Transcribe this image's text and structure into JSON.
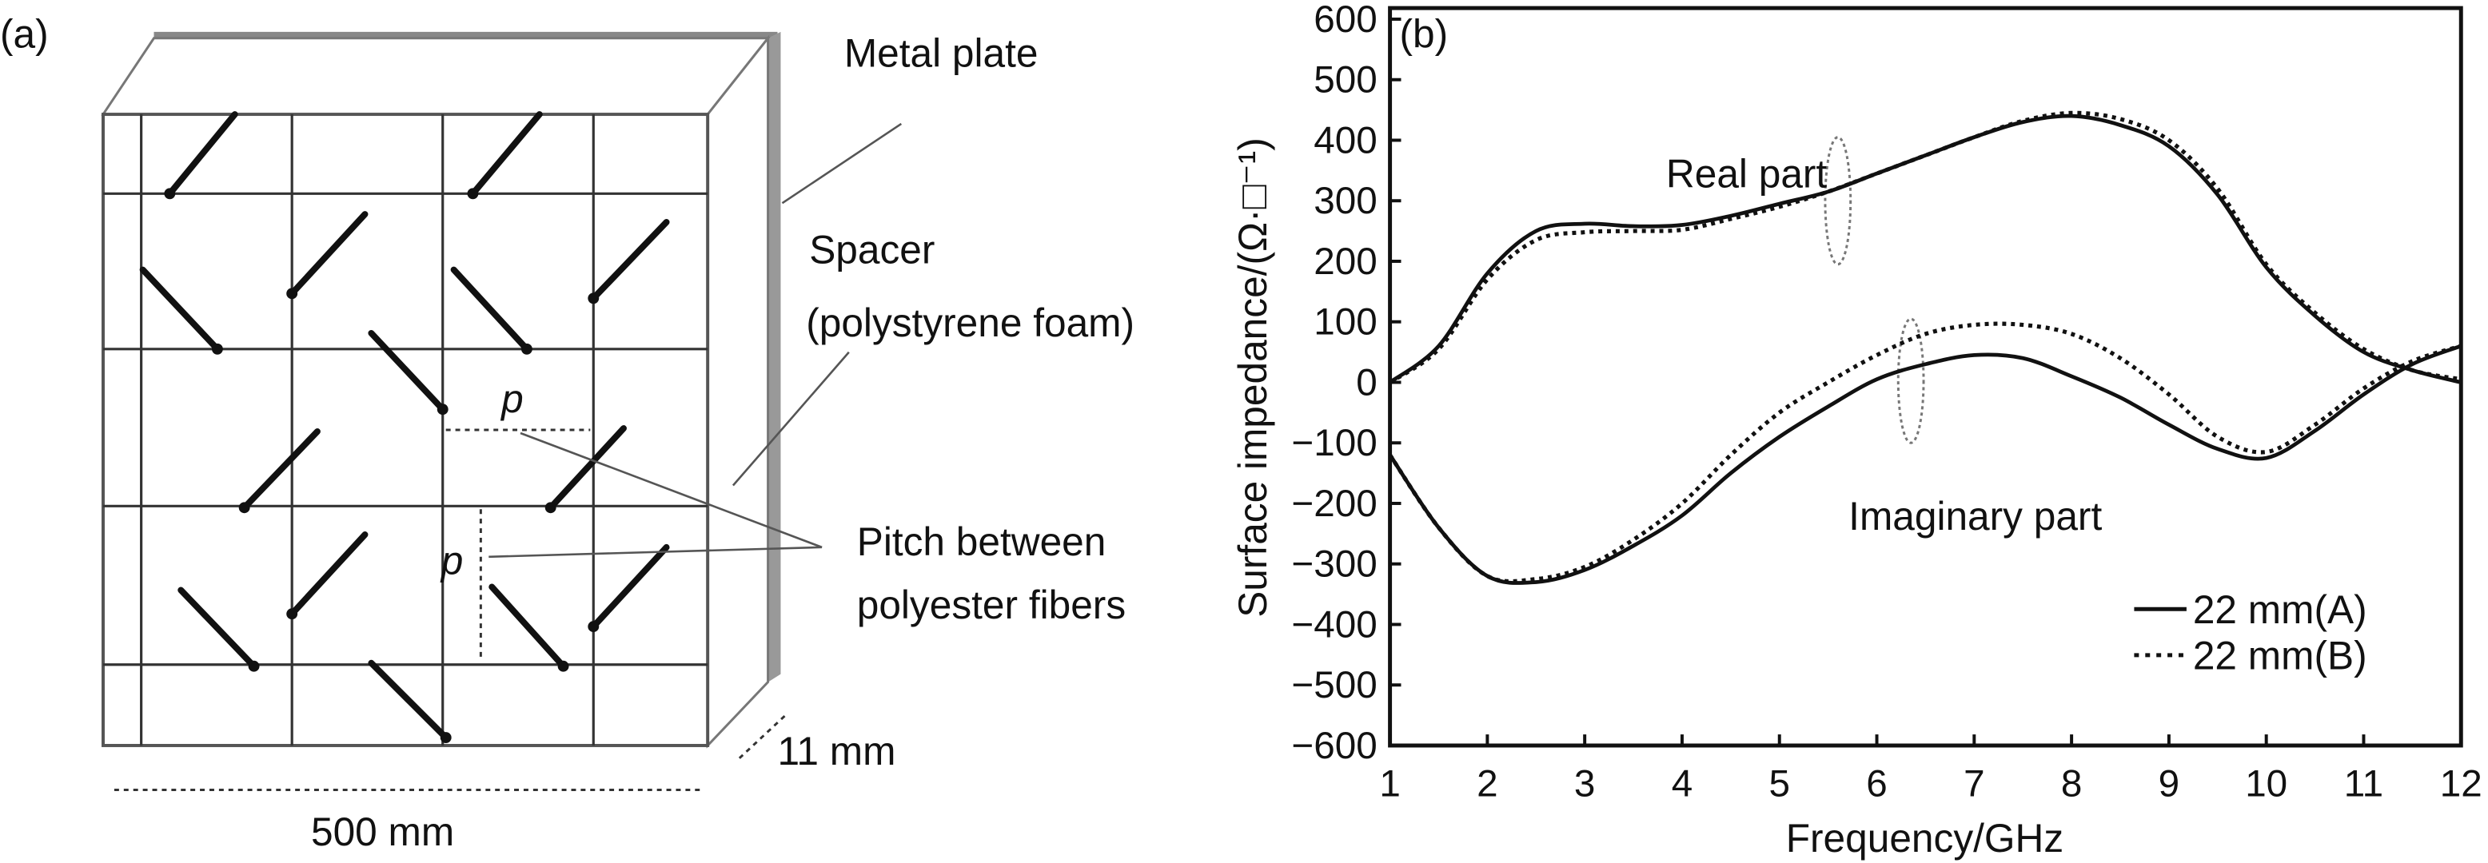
{
  "panel_a": {
    "label": "(a)",
    "metal_plate": "Metal plate",
    "spacer": "Spacer",
    "spacer_material": "(polystyrene foam)",
    "pitch_line1": "Pitch between",
    "pitch_line2": "polyester fibers",
    "pitch_symbol": "p",
    "thickness": "11 mm",
    "width": "500 mm"
  },
  "chart_data": {
    "type": "line",
    "panel_label": "(b)",
    "xlabel": "Frequency/GHz",
    "ylabel": "Surface impedance/(Ω·□⁻¹)",
    "xlim": [
      1,
      12
    ],
    "ylim": [
      -600,
      600
    ],
    "xticks": [
      1,
      2,
      3,
      4,
      5,
      6,
      7,
      8,
      9,
      10,
      11,
      12
    ],
    "yticks": [
      600,
      500,
      400,
      300,
      200,
      100,
      0,
      -100,
      -200,
      -300,
      -400,
      -500,
      -600
    ],
    "grid": false,
    "legend_position": "bottom-right",
    "annotations": {
      "real": "Real part",
      "imaginary": "Imaginary part"
    },
    "x": [
      1,
      1.5,
      2,
      2.5,
      3,
      3.5,
      4,
      4.5,
      5,
      5.5,
      6,
      6.5,
      7,
      7.5,
      8,
      8.5,
      9,
      9.5,
      10,
      10.5,
      11,
      11.5,
      12
    ],
    "series": [
      {
        "name": "22 mm(A)",
        "part": "real",
        "style": "solid",
        "values": [
          0,
          60,
          180,
          250,
          262,
          258,
          260,
          275,
          295,
          315,
          345,
          375,
          405,
          430,
          440,
          425,
          390,
          310,
          190,
          110,
          50,
          20,
          0
        ]
      },
      {
        "name": "22 mm(B)",
        "part": "real",
        "style": "dotted",
        "values": [
          0,
          55,
          170,
          235,
          248,
          250,
          252,
          270,
          290,
          315,
          345,
          375,
          405,
          432,
          445,
          435,
          400,
          320,
          195,
          115,
          55,
          20,
          5
        ]
      },
      {
        "name": "22 mm(A)",
        "part": "imaginary",
        "style": "solid",
        "values": [
          -120,
          -240,
          -320,
          -330,
          -310,
          -270,
          -220,
          -150,
          -90,
          -40,
          5,
          30,
          45,
          40,
          10,
          -25,
          -70,
          -110,
          -125,
          -80,
          -20,
          30,
          60
        ]
      },
      {
        "name": "22 mm(B)",
        "part": "imaginary",
        "style": "dotted",
        "values": [
          -120,
          -240,
          -320,
          -325,
          -305,
          -260,
          -200,
          -120,
          -50,
          0,
          45,
          80,
          95,
          95,
          80,
          40,
          -20,
          -90,
          -115,
          -70,
          -10,
          35,
          60
        ]
      }
    ],
    "legend": [
      "22 mm(A)",
      "22 mm(B)"
    ]
  }
}
